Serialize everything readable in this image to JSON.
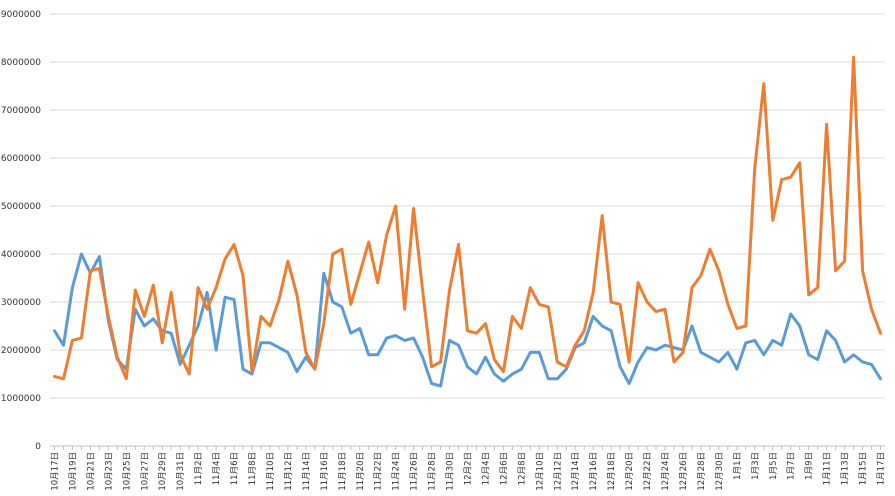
{
  "chart_data": {
    "type": "line",
    "title": "",
    "xlabel": "",
    "ylabel": "",
    "ylim": [
      0,
      9000000
    ],
    "yticks": [
      0,
      1000000,
      2000000,
      3000000,
      4000000,
      5000000,
      6000000,
      7000000,
      8000000,
      9000000
    ],
    "grid": true,
    "x": [
      "10月17日",
      "10月18日",
      "10月19日",
      "10月20日",
      "10月21日",
      "10月22日",
      "10月23日",
      "10月24日",
      "10月25日",
      "10月26日",
      "10月27日",
      "10月28日",
      "10月29日",
      "10月30日",
      "10月31日",
      "11月1日",
      "11月2日",
      "11月3日",
      "11月4日",
      "11月5日",
      "11月6日",
      "11月7日",
      "11月8日",
      "11月9日",
      "11月10日",
      "11月11日",
      "11月12日",
      "11月13日",
      "11月14日",
      "11月15日",
      "11月16日",
      "11月17日",
      "11月18日",
      "11月19日",
      "11月20日",
      "11月21日",
      "11月22日",
      "11月23日",
      "11月24日",
      "11月25日",
      "11月26日",
      "11月27日",
      "11月28日",
      "11月29日",
      "11月30日",
      "12月1日",
      "12月2日",
      "12月3日",
      "12月4日",
      "12月5日",
      "12月6日",
      "12月7日",
      "12月8日",
      "12月9日",
      "12月10日",
      "12月11日",
      "12月12日",
      "12月13日",
      "12月14日",
      "12月15日",
      "12月16日",
      "12月17日",
      "12月18日",
      "12月19日",
      "12月20日",
      "12月21日",
      "12月22日",
      "12月23日",
      "12月24日",
      "12月25日",
      "12月26日",
      "12月27日",
      "12月28日",
      "12月29日",
      "12月30日",
      "12月31日",
      "1月1日",
      "1月2日",
      "1月3日",
      "1月4日",
      "1月5日",
      "1月6日",
      "1月7日",
      "1月8日",
      "1月9日",
      "1月10日",
      "1月11日",
      "1月12日",
      "1月13日",
      "1月14日",
      "1月15日",
      "1月16日",
      "1月17日"
    ],
    "series": [
      {
        "color": "#5b9bd5",
        "values": [
          2400000,
          2100000,
          3300000,
          4000000,
          3600000,
          3950000,
          2600000,
          1800000,
          1600000,
          2850000,
          2500000,
          2650000,
          2400000,
          2350000,
          1700000,
          2100000,
          2500000,
          3200000,
          2000000,
          3100000,
          3050000,
          1600000,
          1500000,
          2150000,
          2150000,
          2050000,
          1950000,
          1550000,
          1850000,
          1600000,
          3600000,
          3000000,
          2900000,
          2350000,
          2450000,
          1900000,
          1900000,
          2250000,
          2300000,
          2200000,
          2250000,
          1850000,
          1300000,
          1250000,
          2200000,
          2100000,
          1650000,
          1500000,
          1850000,
          1500000,
          1350000,
          1500000,
          1600000,
          1950000,
          1950000,
          1400000,
          1400000,
          1600000,
          2050000,
          2150000,
          2700000,
          2500000,
          2400000,
          1650000,
          1300000,
          1750000,
          2050000,
          2000000,
          2100000,
          2050000,
          2000000,
          2500000,
          1950000,
          1850000,
          1750000,
          1950000,
          1600000,
          2150000,
          2200000,
          1900000,
          2200000,
          2100000,
          2750000,
          2500000,
          1900000,
          1800000,
          2400000,
          2200000,
          1750000,
          1900000,
          1750000,
          1700000,
          1400000
        ]
      },
      {
        "color": "#ed7d31",
        "values": [
          1450000,
          1400000,
          2200000,
          2250000,
          3650000,
          3700000,
          2700000,
          1850000,
          1400000,
          3250000,
          2700000,
          3350000,
          2150000,
          3200000,
          1900000,
          1500000,
          3300000,
          2850000,
          3300000,
          3900000,
          4200000,
          3550000,
          1550000,
          2700000,
          2500000,
          3050000,
          3850000,
          3150000,
          1950000,
          1600000,
          2550000,
          4000000,
          4100000,
          2950000,
          3600000,
          4250000,
          3400000,
          4400000,
          5000000,
          2850000,
          4950000,
          3250000,
          1650000,
          1750000,
          3250000,
          4200000,
          2400000,
          2350000,
          2550000,
          1800000,
          1550000,
          2700000,
          2450000,
          3300000,
          2950000,
          2900000,
          1750000,
          1650000,
          2100000,
          2400000,
          3200000,
          4800000,
          3000000,
          2950000,
          1750000,
          3400000,
          3000000,
          2800000,
          2850000,
          1750000,
          1950000,
          3300000,
          3550000,
          4100000,
          3650000,
          2950000,
          2450000,
          2500000,
          5800000,
          7550000,
          4700000,
          5550000,
          5600000,
          5900000,
          3150000,
          3300000,
          6700000,
          3650000,
          3850000,
          8100000,
          3650000,
          2850000,
          2350000
        ]
      }
    ]
  }
}
